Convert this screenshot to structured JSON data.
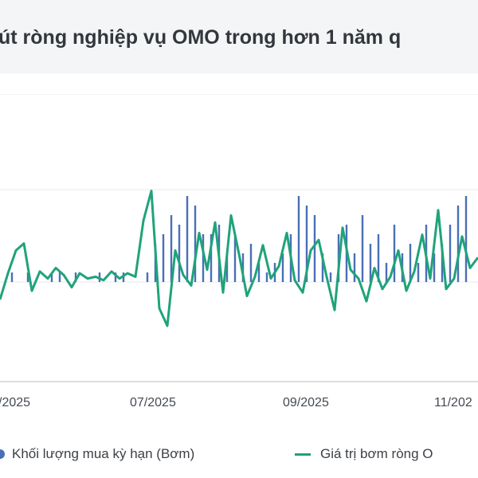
{
  "title": "út ròng nghiệp vụ OMO trong hơn 1 năm q",
  "legend": {
    "buy": "Khối lượng mua kỳ hạn (Bơm)",
    "net": "Giá trị bơm ròng O"
  },
  "colors": {
    "bars": "#4a6fb5",
    "line": "#1fa37a",
    "grid": "#e6e8ec",
    "title_bg": "#f4f5f7"
  },
  "chart_data": {
    "type": "bar+line",
    "x_ticks": [
      "/2025",
      "07/2025",
      "09/2025",
      "11/202"
    ],
    "grid": true,
    "legend_placement": "bottom",
    "series": [
      {
        "name": "Khối lượng mua kỳ hạn (Bơm)",
        "type": "bar",
        "x": [
          1.5,
          2.5,
          3.5,
          4.5,
          5.5,
          6.5,
          7.5,
          8.5,
          9.5,
          10.5,
          11.5,
          12.5,
          13.5,
          14.5,
          15.5,
          16.5,
          17.5,
          18.5,
          19.5,
          20.5,
          21.5,
          22.5,
          23.5,
          24.5,
          25.5,
          26.5,
          27.5,
          28.5,
          29.5,
          30.5,
          31.5,
          32.5,
          33.5,
          34.5,
          35.5,
          36.5,
          37.5,
          38.5,
          39.5,
          40.5,
          41.5,
          42.5,
          43.5,
          44.5,
          45.5,
          46.5,
          47.5,
          48.5,
          49.5,
          50.5,
          51.5,
          52.5,
          53.5,
          54.5,
          55.5,
          56.5,
          57.5,
          58.5
        ],
        "values": [
          1,
          0,
          1,
          0,
          0,
          1,
          1,
          0,
          1,
          0,
          0,
          1,
          0,
          1,
          1,
          0,
          0,
          1,
          4,
          5,
          7,
          6,
          9,
          8,
          5,
          5,
          6,
          3,
          5,
          3,
          4,
          2,
          1,
          2,
          3,
          5,
          9,
          8,
          7,
          3,
          1,
          5,
          6,
          3,
          7,
          4,
          5,
          2,
          6,
          3,
          4,
          2,
          6,
          3,
          4,
          6,
          8,
          9
        ],
        "unit": "rel"
      },
      {
        "name": "Giá trị bơm ròng O",
        "type": "line",
        "x": [
          0,
          1,
          2,
          3,
          4,
          5,
          6,
          7,
          8,
          9,
          10,
          11,
          12,
          13,
          14,
          15,
          16,
          17,
          18,
          19,
          20,
          21,
          22,
          23,
          24,
          25,
          26,
          27,
          28,
          29,
          30,
          31,
          32,
          33,
          34,
          35,
          36,
          37,
          38,
          39,
          40,
          41,
          42,
          43,
          44,
          45,
          46,
          47,
          48,
          49,
          50,
          51,
          52,
          53,
          54,
          55,
          56,
          57,
          58,
          59,
          60
        ],
        "values": [
          -1,
          0.5,
          1.8,
          2.2,
          -0.5,
          0.6,
          0.2,
          0.8,
          0.4,
          -0.3,
          0.5,
          0.2,
          0.3,
          0.1,
          0.6,
          0.2,
          0.5,
          0.3,
          3.5,
          5.2,
          -1.5,
          -2.5,
          1.8,
          0.4,
          -0.2,
          2.8,
          0.7,
          3.4,
          -0.6,
          3.8,
          1.6,
          -0.8,
          0.3,
          2.1,
          0.2,
          0.9,
          2.8,
          0.1,
          -0.6,
          1.8,
          2.4,
          0.3,
          -1.6,
          3.1,
          0.7,
          0.2,
          -1.1,
          0.8,
          -0.4,
          0.3,
          1.8,
          -0.5,
          0.6,
          2.7,
          0.2,
          4.1,
          -0.4,
          0.2,
          2.6,
          0.8,
          1.4
        ],
        "unit": "rel"
      }
    ]
  }
}
